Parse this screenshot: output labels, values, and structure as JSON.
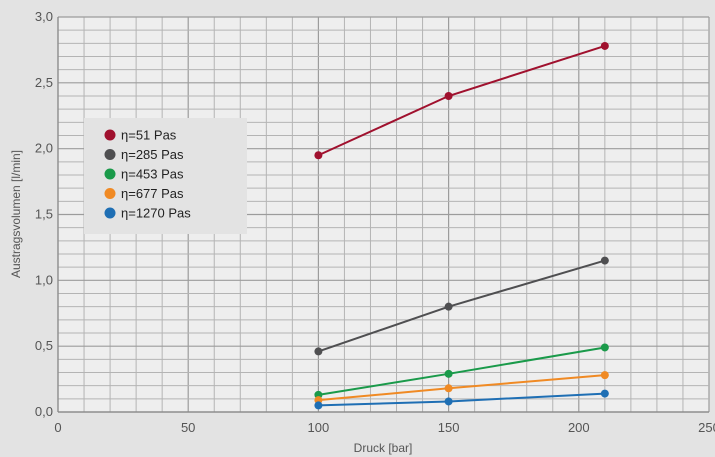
{
  "chart_data": {
    "type": "line",
    "xlabel": "Druck [bar]",
    "ylabel": "Austragsvolumen [l/min]",
    "xlim": [
      0,
      250
    ],
    "ylim": [
      0,
      3.0
    ],
    "x_ticks": [
      "0",
      "50",
      "100",
      "150",
      "200",
      "250"
    ],
    "y_ticks": [
      "0,0",
      "0,5",
      "1,0",
      "1,5",
      "2,0",
      "2,5",
      "3,0"
    ],
    "grid": true,
    "legend_position": "left",
    "x": [
      100,
      150,
      210
    ],
    "series": [
      {
        "name": "η=51 Pas",
        "color": "#a0112e",
        "values": [
          1.95,
          2.4,
          2.78
        ]
      },
      {
        "name": "η=285 Pas",
        "color": "#4f4f51",
        "values": [
          0.46,
          0.8,
          1.15
        ]
      },
      {
        "name": "η=453 Pas",
        "color": "#1a9a4a",
        "values": [
          0.13,
          0.29,
          0.49
        ]
      },
      {
        "name": "η=677 Pas",
        "color": "#f08a24",
        "values": [
          0.09,
          0.18,
          0.28
        ]
      },
      {
        "name": "η=1270 Pas",
        "color": "#1f6fb4",
        "values": [
          0.05,
          0.08,
          0.14
        ]
      }
    ]
  }
}
